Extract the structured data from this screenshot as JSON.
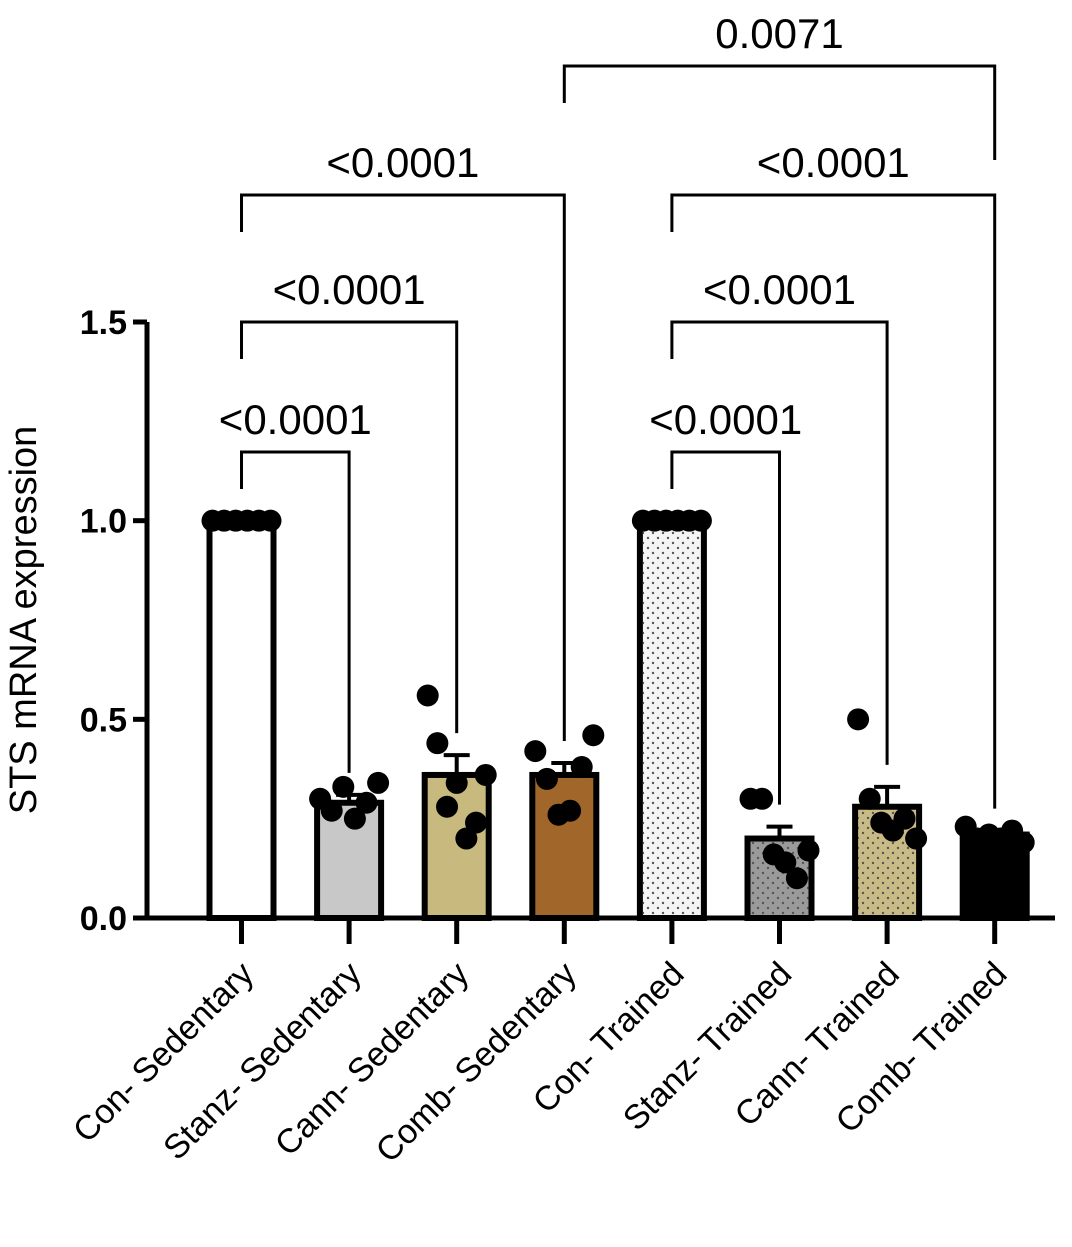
{
  "chart_data": {
    "type": "bar",
    "title": "",
    "xlabel": "",
    "ylabel": "STS mRNA expression",
    "ylim": [
      0,
      1.5
    ],
    "yticks": [
      "0.0",
      "0.5",
      "1.0",
      "1.5"
    ],
    "categories": [
      "Con- Sedentary",
      "Stanz- Sedentary",
      "Cann- Sedentary",
      "Comb- Sedentary",
      "Con- Trained",
      "Stanz- Trained",
      "Cann- Trained",
      "Comb- Trained"
    ],
    "values": [
      1.0,
      0.29,
      0.36,
      0.36,
      1.0,
      0.2,
      0.28,
      0.21
    ],
    "errors": [
      0.0,
      0.02,
      0.05,
      0.03,
      0.0,
      0.03,
      0.05,
      0.01
    ],
    "colors": [
      "#ffffff",
      "#c8c8c8",
      "#c8b97e",
      "#a0662a",
      "#f4f4f4",
      "#9a9a9a",
      "#c9bb85",
      "#000000"
    ],
    "patterns": [
      "none",
      "none",
      "none",
      "none",
      "dots",
      "dots",
      "dots",
      "none"
    ],
    "points": [
      [
        1.0,
        1.0,
        1.0,
        1.0,
        1.0,
        1.0
      ],
      [
        0.3,
        0.27,
        0.33,
        0.25,
        0.29,
        0.34
      ],
      [
        0.56,
        0.44,
        0.28,
        0.34,
        0.2,
        0.24,
        0.36
      ],
      [
        0.42,
        0.35,
        0.26,
        0.27,
        0.38,
        0.46
      ],
      [
        1.0,
        1.0,
        1.0,
        1.0,
        1.0,
        1.0
      ],
      [
        0.3,
        0.3,
        0.16,
        0.14,
        0.1,
        0.17
      ],
      [
        0.5,
        0.3,
        0.24,
        0.22,
        0.25,
        0.2
      ],
      [
        0.23,
        0.2,
        0.21,
        0.2,
        0.22,
        0.19
      ]
    ],
    "comparisons": [
      {
        "from": 0,
        "to": 1,
        "label": "<0.0001"
      },
      {
        "from": 0,
        "to": 2,
        "label": "<0.0001"
      },
      {
        "from": 0,
        "to": 3,
        "label": "<0.0001"
      },
      {
        "from": 3,
        "to": 7,
        "label": "0.0071"
      },
      {
        "from": 4,
        "to": 5,
        "label": "<0.0001"
      },
      {
        "from": 4,
        "to": 6,
        "label": "<0.0001"
      },
      {
        "from": 4,
        "to": 7,
        "label": "<0.0001"
      }
    ]
  }
}
